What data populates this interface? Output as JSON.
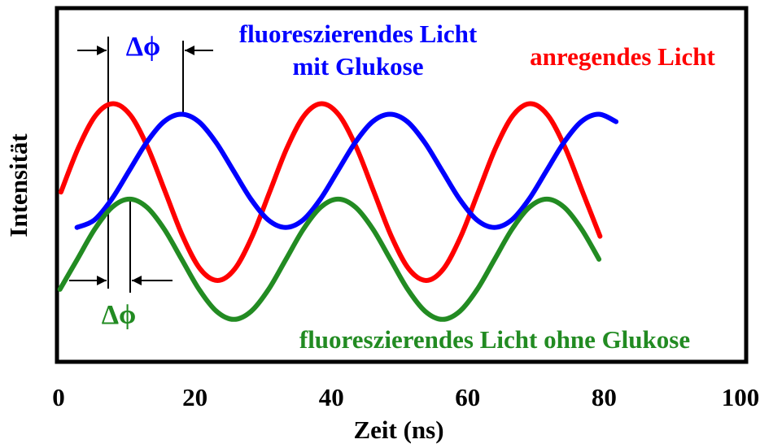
{
  "chart_data": {
    "type": "line",
    "xlabel": "Zeit (ns)",
    "ylabel": "Intensität",
    "xlim": [
      0,
      100
    ],
    "xticks": [
      0,
      20,
      40,
      60,
      80,
      100
    ],
    "ylim": [
      0,
      100
    ],
    "grid": false,
    "series": [
      {
        "name": "anregendes Licht",
        "color": "#ff0000",
        "x": [
          0.35,
          2.9,
          5.45,
          8,
          10.55,
          13.1,
          15.65,
          18.2,
          20.75,
          23.3,
          25.85,
          28.4,
          30.95,
          33.5,
          36.05,
          38.6,
          41.15,
          43.7,
          46.25,
          48.8,
          51.35,
          53.9,
          56.45,
          59,
          61.55,
          64.1,
          66.65,
          69.2,
          71.75,
          74.3,
          76.85,
          79.4
        ],
        "values": [
          48,
          60.5,
          69.7,
          73,
          69.7,
          60.5,
          48,
          35.5,
          26.3,
          23,
          26.3,
          35.5,
          48,
          60.5,
          69.7,
          73,
          69.7,
          60.5,
          48,
          35.5,
          26.3,
          23,
          26.3,
          35.5,
          48,
          60.5,
          69.7,
          73,
          69.7,
          60.5,
          48,
          35.5
        ]
      },
      {
        "name": "fluoreszierendes Licht mit Glukose",
        "color": "#0000ff",
        "x": [
          2.7,
          5.25,
          7.8,
          10.35,
          12.9,
          15.45,
          18,
          20.55,
          23.1,
          25.65,
          28.2,
          30.75,
          33.3,
          35.85,
          38.4,
          40.95,
          43.5,
          46.05,
          48.6,
          51.15,
          53.7,
          56.25,
          58.8,
          61.35,
          63.9,
          66.45,
          69,
          71.55,
          74.1,
          76.65,
          79.2,
          81.75
        ],
        "values": [
          38,
          40.1,
          46,
          54,
          62,
          67.9,
          70,
          67.9,
          62,
          54,
          46,
          40.1,
          38,
          40.1,
          46,
          54,
          62,
          67.9,
          70,
          67.9,
          62,
          54,
          46,
          40.1,
          38,
          40.1,
          46,
          54,
          62,
          67.9,
          70,
          67.9
        ]
      },
      {
        "name": "fluoreszierendes Licht ohne Glukose",
        "color": "#228b22",
        "x": [
          0.2,
          2.75,
          5.3,
          7.85,
          10.4,
          12.95,
          15.5,
          18.05,
          20.6,
          23.15,
          25.7,
          28.25,
          30.8,
          33.35,
          35.9,
          38.45,
          41,
          43.55,
          46.1,
          48.65,
          51.2,
          53.75,
          56.3,
          58.85,
          61.4,
          63.95,
          66.5,
          69.05,
          71.6,
          74.15,
          76.7,
          79.25
        ],
        "values": [
          20.5,
          29,
          37.5,
          43.7,
          46,
          43.7,
          37.5,
          29,
          20.5,
          14.3,
          12,
          14.3,
          20.5,
          29,
          37.5,
          43.7,
          46,
          43.7,
          37.5,
          29,
          20.5,
          14.3,
          12,
          14.3,
          20.5,
          29,
          37.5,
          43.7,
          46,
          43.7,
          37.5,
          29
        ]
      }
    ],
    "annotations": [
      {
        "text": "Δϕ",
        "color": "#0000ff"
      },
      {
        "text": "Δϕ",
        "color": "#228b22"
      }
    ]
  }
}
